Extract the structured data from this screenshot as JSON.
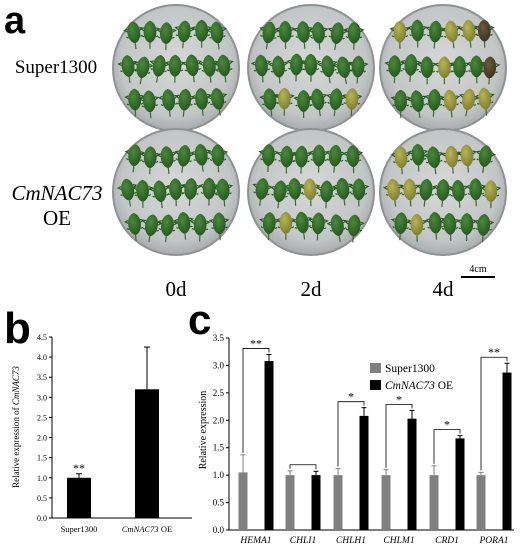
{
  "panel_a": {
    "letter": "a",
    "rows": [
      {
        "label": "Super1300",
        "label_italic": false
      },
      {
        "label": "CmNAC73",
        "label_italic": true,
        "sublabel": "OE"
      }
    ],
    "timepoints": [
      "0d",
      "2d",
      "4d"
    ],
    "scale_bar": "4cm",
    "colors": {
      "plate_fill": "#c9cccd",
      "plate_rim": "#8e9292",
      "leaf_green": "#2f6a2a",
      "leaf_yellow": "#a5a43d"
    }
  },
  "panel_b": {
    "letter": "b",
    "chart_data": {
      "type": "bar",
      "ylabel": "Relative expression of CmNAC73",
      "ylabel_plain": "Relative expression of ",
      "ylabel_italic": "CmNAC73",
      "ylim": [
        0,
        4.5
      ],
      "yticks": [
        "0.0",
        "0.5",
        "1.0",
        "1.5",
        "2.0",
        "2.5",
        "3.0",
        "3.5",
        "4.0",
        "4.5"
      ],
      "categories": [
        "Super1300",
        "CmNAC73 OE"
      ],
      "category_parts": [
        {
          "italic": "",
          "plain": "Super1300"
        },
        {
          "italic": "CmNAC73",
          "plain": " OE"
        }
      ],
      "values": [
        1.0,
        3.2
      ],
      "errors": [
        0.1,
        1.05
      ],
      "annotations": [
        {
          "category": "Super1300",
          "text": "**"
        }
      ],
      "bar_color": "#000000"
    }
  },
  "panel_c": {
    "letter": "c",
    "chart_data": {
      "type": "bar",
      "ylabel": "Relative expression",
      "ylim": [
        0,
        3.5
      ],
      "yticks": [
        "0.0",
        "0.5",
        "1.0",
        "1.5",
        "2.0",
        "2.5",
        "3.0",
        "3.5"
      ],
      "categories": [
        "HEMA1",
        "CHLI1",
        "CHLH1",
        "CHLM1",
        "CRD1",
        "PORA1"
      ],
      "series": [
        {
          "name": "Super1300",
          "name_italic": "",
          "name_plain": "Super1300",
          "color": "#808080",
          "values": [
            1.05,
            1.0,
            1.0,
            1.0,
            1.0,
            1.0
          ],
          "errors": [
            0.32,
            0.08,
            0.12,
            0.1,
            0.17,
            0.05
          ]
        },
        {
          "name": "CmNAC73 OE",
          "name_italic": "CmNAC73",
          "name_plain": " OE",
          "color": "#000000",
          "values": [
            3.08,
            1.0,
            2.08,
            2.03,
            1.67,
            2.87
          ],
          "errors": [
            0.12,
            0.07,
            0.15,
            0.15,
            0.05,
            0.17
          ]
        }
      ],
      "significance": [
        "**",
        "",
        "*",
        "*",
        "*",
        "**"
      ],
      "legend_position": "top-right"
    }
  }
}
